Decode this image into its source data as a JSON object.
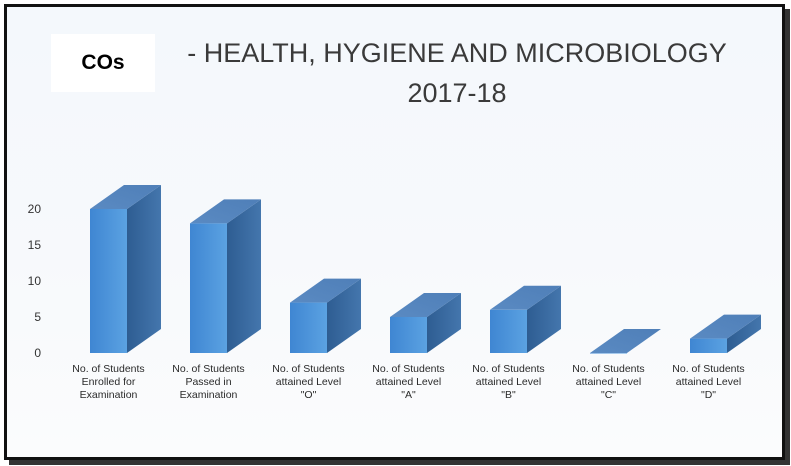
{
  "chart_data": {
    "type": "bar",
    "title_prefix": "COs",
    "title_line1": "- HEALTH, HYGIENE AND MICROBIOLOGY",
    "title_line2": "2017-18",
    "xlabel": "",
    "ylabel": "",
    "categories": [
      "No. of Students Enrolled for Examination",
      "No. of Students Passed in Examination",
      "No. of Students attained Level \"O\"",
      "No. of Students attained Level \"A\"",
      "No. of Students attained Level \"B\"",
      "No. of Students attained Level \"C\"",
      "No. of Students attained Level \"D\""
    ],
    "category_lines": [
      [
        "No. of Students",
        "Enrolled for",
        "Examination"
      ],
      [
        "No. of Students",
        "Passed in",
        "Examination"
      ],
      [
        "No. of Students",
        "attained Level",
        "\"O\""
      ],
      [
        "No. of Students",
        "attained Level",
        "\"A\""
      ],
      [
        "No. of Students",
        "attained Level",
        "\"B\""
      ],
      [
        "No. of Students",
        "attained Level",
        "\"C\""
      ],
      [
        "No. of Students",
        "attained Level",
        "\"D\""
      ]
    ],
    "values": [
      20,
      18,
      7,
      5,
      6,
      0,
      2
    ],
    "ylim": [
      0,
      20
    ],
    "yticks": [
      "0",
      "5",
      "10",
      "15",
      "20"
    ],
    "grid": false,
    "style": "3d-column",
    "colors": {
      "front": "#4a90d8",
      "side": "#2e5d92",
      "top": "#4f7fb8"
    }
  }
}
